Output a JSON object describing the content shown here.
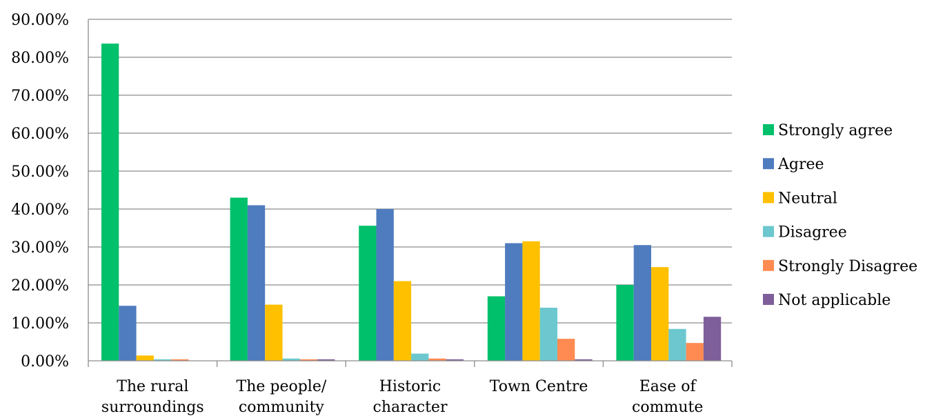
{
  "chart_data": {
    "type": "bar",
    "title": "",
    "xlabel": "",
    "ylabel": "",
    "categories": [
      [
        "The rural",
        "surroundings"
      ],
      [
        "The people/",
        "community"
      ],
      [
        "Historic",
        "character"
      ],
      [
        "Town Centre"
      ],
      [
        "Ease of",
        "commute"
      ]
    ],
    "ylim": [
      0,
      90
    ],
    "yticks": [
      "0.00%",
      "10.00%",
      "20.00%",
      "30.00%",
      "40.00%",
      "50.00%",
      "60.00%",
      "70.00%",
      "80.00%",
      "90.00%"
    ],
    "grid": true,
    "legend_position": "right",
    "series": [
      {
        "name": "Strongly agree",
        "color": "#00C06B",
        "values": [
          83.6,
          43.0,
          35.6,
          17.0,
          20.0
        ]
      },
      {
        "name": "Agree",
        "color": "#4F7BBF",
        "values": [
          14.5,
          41.0,
          40.0,
          31.0,
          30.5
        ]
      },
      {
        "name": "Neutral",
        "color": "#FFC000",
        "values": [
          1.4,
          14.8,
          21.0,
          31.5,
          24.7
        ]
      },
      {
        "name": "Disagree",
        "color": "#6CC8CE",
        "values": [
          0.4,
          0.6,
          1.9,
          14.0,
          8.4
        ]
      },
      {
        "name": "Strongly Disagree",
        "color": "#FF8A52",
        "values": [
          0.4,
          0.4,
          0.6,
          5.8,
          4.7
        ]
      },
      {
        "name": "Not applicable",
        "color": "#7E5F9A",
        "values": [
          0.0,
          0.4,
          0.4,
          0.4,
          11.6
        ]
      }
    ]
  }
}
